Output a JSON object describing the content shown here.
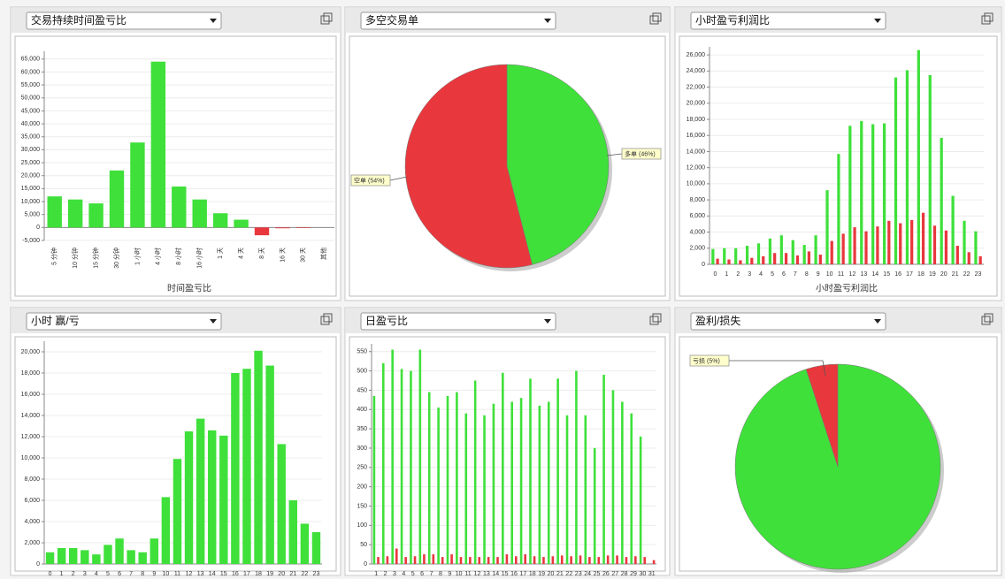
{
  "chart_data": [
    {
      "type": "bar",
      "title": "交易持续时间盈亏比",
      "xlabel": "时间盈亏比",
      "categories": [
        "5 分钟",
        "10 分钟",
        "15 分钟",
        "30 分钟",
        "1 小时",
        "4 小时",
        "8 小时",
        "16 小时",
        "1 天",
        "4 天",
        "8 天",
        "16 天",
        "30 天",
        "其他"
      ],
      "values": [
        12000,
        10800,
        9300,
        22000,
        32800,
        64000,
        15800,
        10800,
        5500,
        3000,
        -3000,
        -300,
        -200,
        0
      ],
      "color": "#3fe03a",
      "negative_color": "#e8383d",
      "ylim": [
        -5000,
        68000
      ],
      "yticks": [
        {
          "value": -5000,
          "label": "-5,000"
        },
        0,
        {
          "value": 5000,
          "label": "5,000"
        },
        {
          "value": 10000,
          "label": "10,000"
        },
        {
          "value": 15000,
          "label": "15,000"
        },
        {
          "value": 20000,
          "label": "20,000"
        },
        {
          "value": 25000,
          "label": "25,000"
        },
        {
          "value": 30000,
          "label": "30,000"
        },
        {
          "value": 35000,
          "label": "35,000"
        },
        {
          "value": 40000,
          "label": "40,000"
        },
        {
          "value": 45000,
          "label": "45,000"
        },
        {
          "value": 50000,
          "label": "50,000"
        },
        {
          "value": 55000,
          "label": "55,000"
        },
        {
          "value": 60000,
          "label": "60,000"
        },
        {
          "value": 65000,
          "label": "65,000"
        }
      ],
      "grid": true
    },
    {
      "type": "pie",
      "title": "多空交易单",
      "categories": [
        "多单",
        "空单"
      ],
      "values": [
        46,
        54
      ],
      "value_labels": [
        "(46%)",
        "(54%)"
      ],
      "colors": [
        "#3fe03a",
        "#e8383d"
      ]
    },
    {
      "type": "bar",
      "title": "小时盈亏利润比",
      "xlabel": "小时盈亏利润比",
      "categories": [
        0,
        1,
        2,
        3,
        4,
        5,
        6,
        7,
        8,
        9,
        10,
        11,
        12,
        13,
        14,
        15,
        16,
        17,
        18,
        19,
        20,
        21,
        22,
        23
      ],
      "series": [
        {
          "color": "#3fe03a",
          "values": [
            1900,
            2000,
            2000,
            2300,
            2600,
            3200,
            3600,
            3000,
            2400,
            3600,
            9200,
            13700,
            17200,
            17800,
            17400,
            17500,
            23200,
            24100,
            26600,
            23500,
            15700,
            8500,
            5400,
            4100
          ]
        },
        {
          "color": "#e8383d",
          "values": [
            700,
            600,
            500,
            800,
            1000,
            1400,
            1400,
            1100,
            1600,
            1200,
            2900,
            3800,
            4600,
            4100,
            4700,
            5400,
            5100,
            5500,
            6400,
            4800,
            4200,
            2300,
            1500,
            1000
          ]
        }
      ],
      "ylim": [
        0,
        27000
      ],
      "yticks": [
        0,
        {
          "value": 2000,
          "label": "2,000"
        },
        {
          "value": 4000,
          "label": "4,000"
        },
        {
          "value": 6000,
          "label": "6,000"
        },
        {
          "value": 8000,
          "label": "8,000"
        },
        {
          "value": 10000,
          "label": "10,000"
        },
        {
          "value": 12000,
          "label": "12,000"
        },
        {
          "value": 14000,
          "label": "14,000"
        },
        {
          "value": 16000,
          "label": "16,000"
        },
        {
          "value": 18000,
          "label": "18,000"
        },
        {
          "value": 20000,
          "label": "20,000"
        },
        {
          "value": 22000,
          "label": "22,000"
        },
        {
          "value": 24000,
          "label": "24,000"
        },
        {
          "value": 26000,
          "label": "26,000"
        }
      ],
      "grid": true
    },
    {
      "type": "bar",
      "title": "小时 赢/亏",
      "categories": [
        0,
        1,
        2,
        3,
        4,
        5,
        6,
        7,
        8,
        9,
        10,
        11,
        12,
        13,
        14,
        15,
        16,
        17,
        18,
        19,
        20,
        21,
        22,
        23
      ],
      "values": [
        1100,
        1500,
        1500,
        1300,
        900,
        1800,
        2400,
        1300,
        1100,
        2400,
        6300,
        9900,
        12500,
        13700,
        12600,
        12100,
        18000,
        18400,
        20100,
        18700,
        11300,
        6000,
        3800,
        3000
      ],
      "color": "#3fe03a",
      "ylim": [
        0,
        21000
      ],
      "yticks": [
        0,
        {
          "value": 2000,
          "label": "2,000"
        },
        {
          "value": 4000,
          "label": "4,000"
        },
        {
          "value": 6000,
          "label": "6,000"
        },
        {
          "value": 8000,
          "label": "8,000"
        },
        {
          "value": 10000,
          "label": "10,000"
        },
        {
          "value": 12000,
          "label": "12,000"
        },
        {
          "value": 14000,
          "label": "14,000"
        },
        {
          "value": 16000,
          "label": "16,000"
        },
        {
          "value": 18000,
          "label": "18,000"
        },
        {
          "value": 20000,
          "label": "20,000"
        }
      ],
      "grid": true
    },
    {
      "type": "bar",
      "title": "日盈亏比",
      "categories": [
        1,
        2,
        3,
        4,
        5,
        6,
        7,
        8,
        9,
        10,
        11,
        12,
        13,
        14,
        15,
        16,
        17,
        18,
        19,
        20,
        21,
        22,
        23,
        24,
        25,
        26,
        27,
        28,
        29,
        30,
        31
      ],
      "series": [
        {
          "color": "#3fe03a",
          "values": [
            435,
            520,
            555,
            505,
            500,
            555,
            445,
            405,
            435,
            445,
            390,
            475,
            385,
            415,
            495,
            420,
            430,
            480,
            410,
            420,
            480,
            385,
            500,
            385,
            300,
            490,
            450,
            420,
            390,
            330,
            0
          ]
        },
        {
          "color": "#e8383d",
          "values": [
            18,
            20,
            40,
            18,
            20,
            25,
            25,
            18,
            25,
            18,
            18,
            18,
            18,
            18,
            25,
            20,
            25,
            20,
            18,
            20,
            22,
            20,
            22,
            18,
            18,
            22,
            22,
            18,
            20,
            18,
            10
          ]
        }
      ],
      "ylim": [
        0,
        570
      ],
      "yticks": [
        0,
        50,
        100,
        150,
        200,
        250,
        300,
        350,
        400,
        450,
        500,
        550
      ],
      "grid": true
    },
    {
      "type": "pie",
      "title": "盈利/损失",
      "categories": [
        null,
        "亏损"
      ],
      "values": [
        95,
        5
      ],
      "value_labels": [
        null,
        "(5%)"
      ],
      "colors": [
        "#3fe03a",
        "#e8383d"
      ]
    }
  ]
}
